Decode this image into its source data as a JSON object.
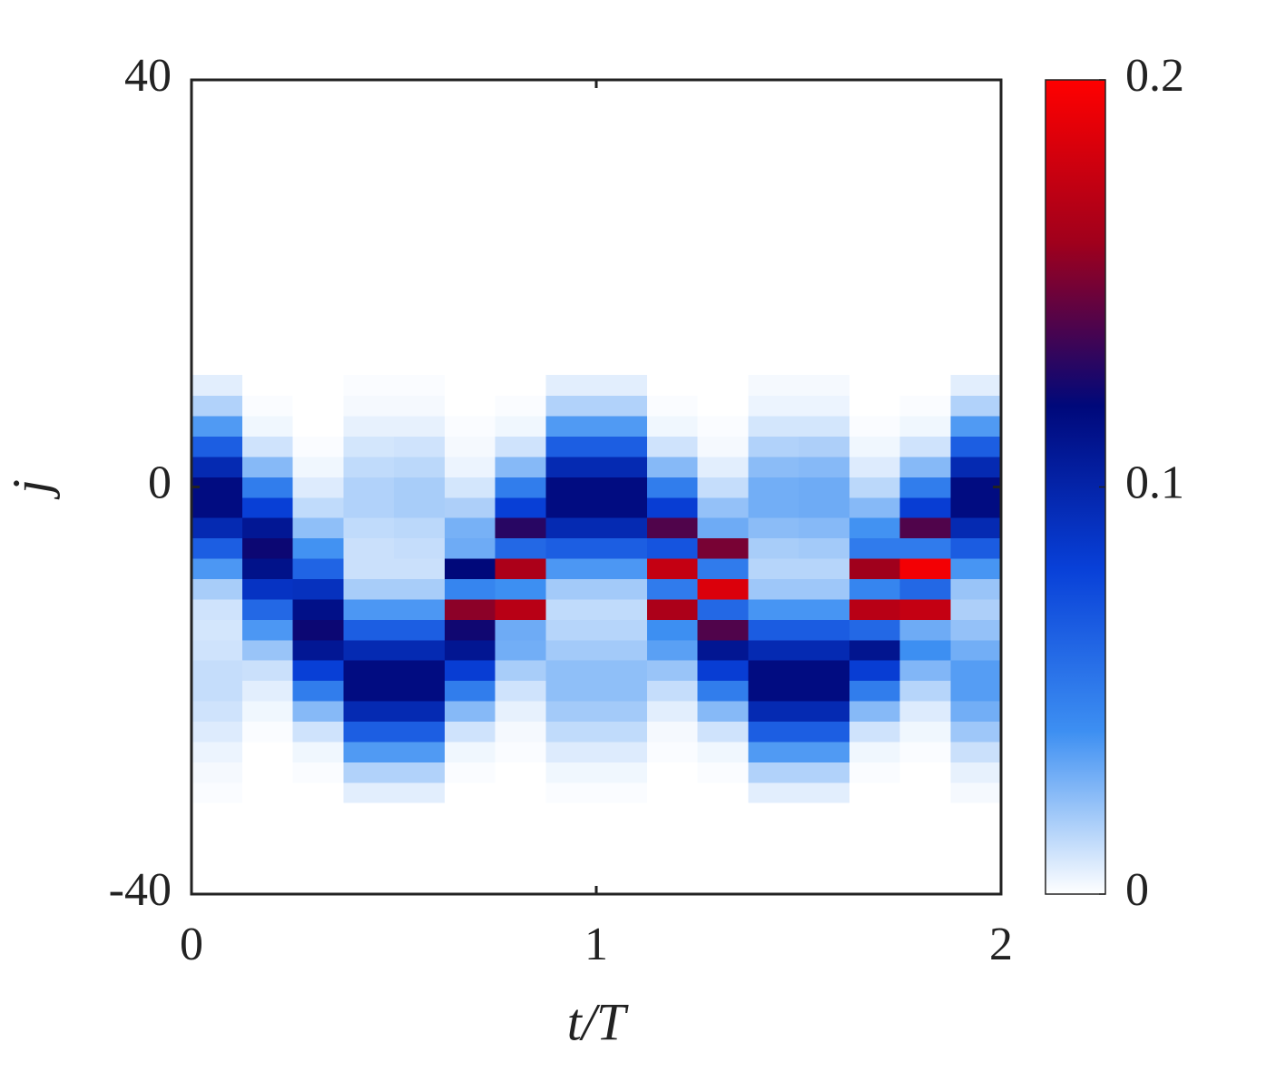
{
  "chart_data": {
    "type": "heatmap",
    "x_label": "t/T",
    "y_label": "j",
    "x": [
      0.0625,
      0.1875,
      0.3125,
      0.4375,
      0.5625,
      0.6875,
      0.8125,
      0.9375,
      1.0625,
      1.1875,
      1.3125,
      1.4375,
      1.5625,
      1.6875,
      1.8125,
      1.9375
    ],
    "y": [
      -30,
      -28,
      -26,
      -24,
      -22,
      -20,
      -18,
      -16,
      -14,
      -12,
      -10,
      -8,
      -6,
      -4,
      -2,
      0,
      2,
      4,
      6,
      8,
      10
    ],
    "z": [
      [
        0.001,
        0.002,
        0.004,
        0.007,
        0.01,
        0.012,
        0.012,
        0.01,
        0.009,
        0.01,
        0.018,
        0.037,
        0.065,
        0.096,
        0.117,
        0.117,
        0.096,
        0.065,
        0.036,
        0.016,
        0.006
      ],
      [
        0,
        0,
        0,
        0.001,
        0.003,
        0.006,
        0.011,
        0.021,
        0.037,
        0.06,
        0.089,
        0.113,
        0.123,
        0.109,
        0.081,
        0.049,
        0.025,
        0.01,
        0.003,
        0.001,
        0
      ],
      [
        0,
        0.001,
        0.003,
        0.01,
        0.025,
        0.049,
        0.081,
        0.109,
        0.123,
        0.114,
        0.091,
        0.062,
        0.039,
        0.023,
        0.013,
        0.007,
        0.003,
        0.001,
        0,
        0,
        0
      ],
      [
        0.006,
        0.016,
        0.036,
        0.065,
        0.096,
        0.117,
        0.117,
        0.096,
        0.065,
        0.037,
        0.018,
        0.011,
        0.011,
        0.013,
        0.016,
        0.016,
        0.013,
        0.009,
        0.005,
        0.002,
        0.001
      ],
      [
        0.006,
        0.016,
        0.036,
        0.065,
        0.096,
        0.117,
        0.117,
        0.096,
        0.065,
        0.037,
        0.018,
        0.011,
        0.012,
        0.014,
        0.018,
        0.018,
        0.014,
        0.01,
        0.005,
        0.002,
        0.001
      ],
      [
        0,
        0.001,
        0.003,
        0.01,
        0.025,
        0.049,
        0.082,
        0.11,
        0.124,
        0.155,
        0.045,
        0.12,
        0.03,
        0.028,
        0.017,
        0.009,
        0.004,
        0.002,
        0.001,
        0,
        0
      ],
      [
        0,
        0,
        0.001,
        0.002,
        0.005,
        0.01,
        0.018,
        0.029,
        0.03,
        0.17,
        0.04,
        0.165,
        0.06,
        0.13,
        0.081,
        0.049,
        0.025,
        0.01,
        0.003,
        0.001,
        0
      ],
      [
        0.001,
        0.003,
        0.007,
        0.013,
        0.019,
        0.023,
        0.023,
        0.019,
        0.015,
        0.013,
        0.019,
        0.037,
        0.065,
        0.096,
        0.117,
        0.117,
        0.096,
        0.065,
        0.036,
        0.016,
        0.006
      ],
      [
        0.001,
        0.003,
        0.007,
        0.013,
        0.019,
        0.023,
        0.023,
        0.019,
        0.015,
        0.013,
        0.019,
        0.037,
        0.065,
        0.096,
        0.117,
        0.117,
        0.096,
        0.065,
        0.036,
        0.016,
        0.006
      ],
      [
        0,
        0,
        0.001,
        0.002,
        0.006,
        0.012,
        0.021,
        0.034,
        0.04,
        0.165,
        0.05,
        0.175,
        0.07,
        0.14,
        0.082,
        0.049,
        0.025,
        0.01,
        0.003,
        0.001,
        0
      ],
      [
        0,
        0.001,
        0.003,
        0.01,
        0.025,
        0.049,
        0.082,
        0.11,
        0.14,
        0.06,
        0.185,
        0.05,
        0.15,
        0.03,
        0.022,
        0.012,
        0.006,
        0.002,
        0.001,
        0,
        0
      ],
      [
        0.006,
        0.016,
        0.036,
        0.065,
        0.096,
        0.117,
        0.117,
        0.096,
        0.066,
        0.038,
        0.02,
        0.015,
        0.018,
        0.024,
        0.029,
        0.029,
        0.024,
        0.016,
        0.009,
        0.004,
        0.002
      ],
      [
        0.006,
        0.016,
        0.036,
        0.065,
        0.096,
        0.117,
        0.117,
        0.096,
        0.066,
        0.038,
        0.02,
        0.015,
        0.019,
        0.025,
        0.03,
        0.03,
        0.025,
        0.017,
        0.009,
        0.004,
        0.002
      ],
      [
        0,
        0.001,
        0.003,
        0.01,
        0.025,
        0.049,
        0.082,
        0.111,
        0.06,
        0.17,
        0.045,
        0.16,
        0.05,
        0.039,
        0.025,
        0.014,
        0.007,
        0.003,
        0.001,
        0,
        0
      ],
      [
        0,
        0,
        0.001,
        0.003,
        0.007,
        0.015,
        0.026,
        0.04,
        0.03,
        0.175,
        0.06,
        0.195,
        0.05,
        0.14,
        0.082,
        0.049,
        0.025,
        0.01,
        0.003,
        0.001,
        0
      ],
      [
        0.002,
        0.005,
        0.011,
        0.02,
        0.029,
        0.035,
        0.035,
        0.029,
        0.022,
        0.017,
        0.021,
        0.038,
        0.066,
        0.096,
        0.117,
        0.117,
        0.096,
        0.065,
        0.036,
        0.016,
        0.006
      ]
    ],
    "xlim": [
      0,
      2
    ],
    "ylim": [
      -40,
      40
    ],
    "xticks": [
      0,
      1,
      2
    ],
    "yticks": [
      -40,
      0,
      40
    ],
    "clim": [
      0,
      0.2
    ],
    "colorbar_ticks": [
      0,
      0.1,
      0.2
    ],
    "colormap": [
      "#ffffff",
      "#3d8ff2",
      "#0840d8",
      "#00087a",
      "#a0001c",
      "#ff0000"
    ]
  }
}
